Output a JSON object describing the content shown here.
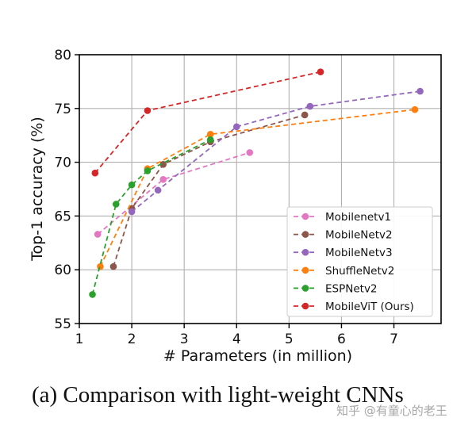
{
  "chart_data": {
    "type": "line",
    "xlabel": "# Parameters (in million)",
    "ylabel": "Top-1 accuracy (%)",
    "xlim": [
      1,
      7.9
    ],
    "ylim": [
      55,
      80
    ],
    "xticks": [
      1,
      2,
      3,
      4,
      5,
      6,
      7
    ],
    "yticks": [
      55,
      60,
      65,
      70,
      75,
      80
    ],
    "grid": true,
    "legend_position": "lower right",
    "line_style": "dashed",
    "series": [
      {
        "name": "Mobilenetv1",
        "color": "#e377c2",
        "points": [
          [
            1.35,
            63.3
          ],
          [
            2.6,
            68.4
          ],
          [
            4.25,
            70.9
          ]
        ]
      },
      {
        "name": "MobileNetv2",
        "color": "#8c564b",
        "points": [
          [
            1.65,
            60.3
          ],
          [
            2.0,
            65.7
          ],
          [
            2.6,
            69.8
          ],
          [
            3.5,
            71.9
          ],
          [
            5.3,
            74.4
          ]
        ]
      },
      {
        "name": "MobileNetv3",
        "color": "#9467bd",
        "points": [
          [
            2.0,
            65.4
          ],
          [
            2.5,
            67.4
          ],
          [
            4.0,
            73.3
          ],
          [
            5.4,
            75.2
          ],
          [
            7.5,
            76.6
          ]
        ]
      },
      {
        "name": "ShuffleNetv2",
        "color": "#ff7f0e",
        "points": [
          [
            1.4,
            60.3
          ],
          [
            2.3,
            69.4
          ],
          [
            3.5,
            72.6
          ],
          [
            7.4,
            74.9
          ]
        ]
      },
      {
        "name": "ESPNetv2",
        "color": "#2ca02c",
        "points": [
          [
            1.25,
            57.7
          ],
          [
            1.7,
            66.1
          ],
          [
            2.0,
            67.9
          ],
          [
            2.3,
            69.2
          ],
          [
            3.5,
            72.1
          ]
        ]
      },
      {
        "name": "MobileViT (Ours)",
        "color": "#d62728",
        "points": [
          [
            1.3,
            69.0
          ],
          [
            2.3,
            74.8
          ],
          [
            5.6,
            78.4
          ]
        ]
      }
    ]
  },
  "caption": "(a) Comparison with light-weight CNNs",
  "watermark": "知乎 @有童心的老王"
}
